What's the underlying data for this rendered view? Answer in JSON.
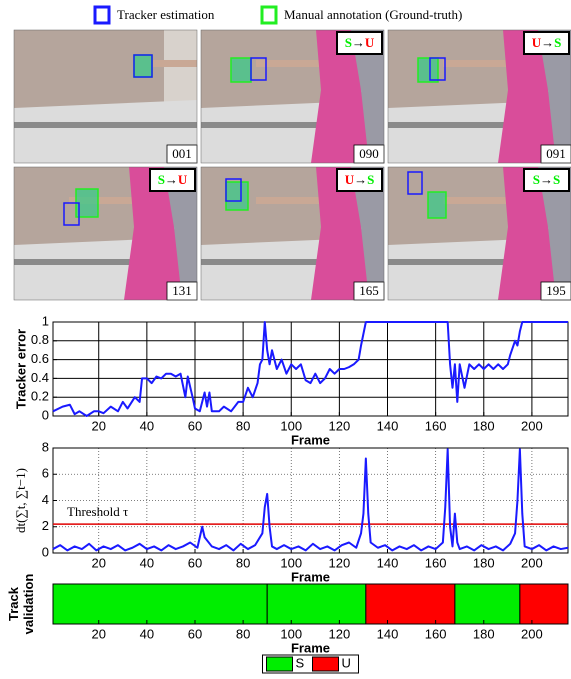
{
  "legend": [
    {
      "label": "Tracker estimation",
      "color": "#1a1aff"
    },
    {
      "label": "Manual annotation (Ground-truth)",
      "color": "#22ee22"
    }
  ],
  "frames": [
    {
      "label": "001",
      "badge": null
    },
    {
      "label": "090",
      "badge": [
        "S",
        "→",
        "U"
      ]
    },
    {
      "label": "091",
      "badge": [
        "U",
        "→",
        "S"
      ]
    },
    {
      "label": "131",
      "badge": [
        "S",
        "→",
        "U"
      ]
    },
    {
      "label": "165",
      "badge": [
        "U",
        "→",
        "S"
      ]
    },
    {
      "label": "195",
      "badge": [
        "S",
        "→",
        "S"
      ]
    }
  ],
  "chart_data": [
    {
      "type": "line",
      "ylabel": [
        "Tracker error"
      ],
      "xlabel": "Frame",
      "grid": "solid",
      "xlim": [
        1,
        215
      ],
      "xticks": [
        20,
        40,
        60,
        80,
        100,
        120,
        140,
        160,
        180,
        200
      ],
      "ylim": [
        0,
        1
      ],
      "yticks": [
        0,
        0.2,
        0.4,
        0.6,
        0.8,
        1
      ],
      "series": [
        {
          "color": "#1a1aff",
          "x": [
            1,
            5,
            8,
            10,
            12,
            15,
            18,
            20,
            22,
            25,
            28,
            30,
            32,
            35,
            37,
            38,
            40,
            42,
            44,
            46,
            48,
            50,
            52,
            54,
            56,
            57,
            59,
            60,
            62,
            64,
            65,
            66,
            67,
            70,
            72,
            75,
            78,
            80,
            82,
            84,
            86,
            87,
            88,
            89,
            90,
            91,
            92,
            94,
            96,
            98,
            100,
            102,
            104,
            106,
            108,
            110,
            112,
            114,
            116,
            118,
            120,
            122,
            124,
            126,
            128,
            129,
            131,
            165,
            166,
            167,
            168,
            169,
            170,
            172,
            174,
            176,
            178,
            180,
            182,
            184,
            186,
            188,
            190,
            191,
            193,
            194,
            195,
            196,
            215
          ],
          "values": [
            0.05,
            0.1,
            0.12,
            0.02,
            0.05,
            0.0,
            0.05,
            0.05,
            0.03,
            0.1,
            0.05,
            0.15,
            0.08,
            0.2,
            0.15,
            0.4,
            0.4,
            0.35,
            0.42,
            0.4,
            0.45,
            0.45,
            0.42,
            0.45,
            0.2,
            0.42,
            0.2,
            0.08,
            0.05,
            0.25,
            0.1,
            0.25,
            0.05,
            0.05,
            0.1,
            0.05,
            0.15,
            0.15,
            0.3,
            0.2,
            0.35,
            0.55,
            0.6,
            1.0,
            0.7,
            0.55,
            0.7,
            0.5,
            0.6,
            0.45,
            0.55,
            0.5,
            0.55,
            0.38,
            0.35,
            0.45,
            0.35,
            0.4,
            0.5,
            0.45,
            0.5,
            0.5,
            0.52,
            0.55,
            0.6,
            0.75,
            1.0,
            1.0,
            0.55,
            0.3,
            0.55,
            0.15,
            0.55,
            0.3,
            0.55,
            0.5,
            0.55,
            0.5,
            0.55,
            0.5,
            0.55,
            0.5,
            0.55,
            0.65,
            0.8,
            0.75,
            0.9,
            1.0,
            1.0
          ]
        }
      ]
    },
    {
      "type": "line",
      "ylabel": [
        "dt(∑t, ∑t−1)"
      ],
      "xlabel": "Frame",
      "grid": "dotted",
      "xlim": [
        1,
        215
      ],
      "xticks": [
        20,
        40,
        60,
        80,
        100,
        120,
        140,
        160,
        180,
        200
      ],
      "ylim": [
        0,
        8
      ],
      "yticks": [
        0,
        2,
        4,
        6,
        8
      ],
      "threshold": {
        "value": 2.2,
        "label": "Threshold τ",
        "color": "#e00000"
      },
      "series": [
        {
          "color": "#1a1aff",
          "x": [
            1,
            4,
            7,
            10,
            13,
            16,
            19,
            22,
            25,
            28,
            31,
            34,
            37,
            40,
            43,
            46,
            49,
            52,
            55,
            58,
            61,
            63,
            64,
            67,
            70,
            73,
            76,
            79,
            82,
            85,
            88,
            89,
            90,
            91,
            92,
            94,
            97,
            100,
            103,
            106,
            109,
            112,
            115,
            118,
            121,
            124,
            127,
            129,
            130,
            131,
            132,
            133,
            136,
            139,
            142,
            145,
            148,
            151,
            154,
            157,
            160,
            163,
            164,
            165,
            166,
            167,
            168,
            169,
            170,
            173,
            176,
            179,
            182,
            185,
            188,
            191,
            193,
            194,
            195,
            196,
            197,
            200,
            203,
            206,
            209,
            212,
            215
          ],
          "values": [
            0.3,
            0.6,
            0.2,
            0.5,
            0.3,
            0.7,
            0.2,
            0.5,
            0.3,
            0.6,
            0.2,
            0.4,
            0.7,
            0.3,
            0.5,
            0.2,
            0.6,
            0.3,
            0.5,
            0.8,
            0.4,
            2.0,
            1.2,
            0.5,
            0.3,
            0.6,
            0.2,
            0.7,
            0.3,
            0.6,
            1.5,
            3.5,
            4.5,
            2.0,
            0.5,
            0.3,
            0.6,
            0.3,
            0.5,
            0.2,
            0.7,
            0.3,
            0.5,
            0.2,
            0.6,
            0.8,
            0.4,
            1.5,
            3.0,
            7.2,
            3.0,
            0.8,
            0.4,
            0.6,
            0.2,
            0.5,
            0.3,
            0.6,
            0.2,
            0.5,
            0.3,
            0.8,
            3.5,
            7.9,
            2.0,
            0.5,
            3.0,
            0.8,
            0.3,
            0.5,
            0.2,
            0.6,
            0.3,
            0.5,
            0.2,
            0.7,
            1.5,
            4.0,
            7.9,
            3.0,
            0.5,
            0.3,
            0.6,
            0.2,
            0.5,
            0.3,
            0.4
          ]
        }
      ]
    },
    {
      "type": "timeline",
      "ylabel": [
        "Track",
        "validation"
      ],
      "xlabel": "Frame",
      "xlim": [
        1,
        215
      ],
      "xticks": [
        20,
        40,
        60,
        80,
        100,
        120,
        140,
        160,
        180,
        200
      ],
      "series": [
        {
          "name": "S",
          "color": "#00ee00"
        },
        {
          "name": "U",
          "color": "#ff0000"
        }
      ],
      "segments": [
        {
          "start": 1,
          "end": 90,
          "state": 0
        },
        {
          "start": 90,
          "end": 131,
          "state": 0
        },
        {
          "start": 131,
          "end": 168,
          "state": 1
        },
        {
          "start": 168,
          "end": 195,
          "state": 0
        },
        {
          "start": 195,
          "end": 215,
          "state": 1
        }
      ]
    }
  ]
}
